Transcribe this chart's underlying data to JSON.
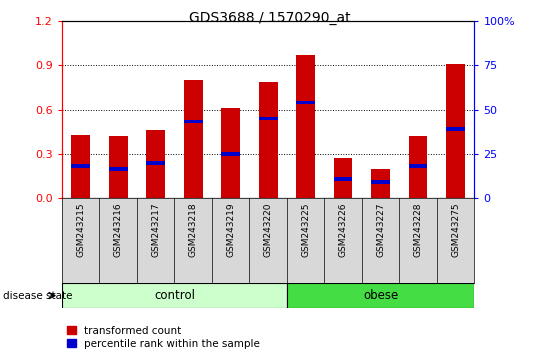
{
  "title": "GDS3688 / 1570290_at",
  "categories": [
    "GSM243215",
    "GSM243216",
    "GSM243217",
    "GSM243218",
    "GSM243219",
    "GSM243220",
    "GSM243225",
    "GSM243226",
    "GSM243227",
    "GSM243228",
    "GSM243275"
  ],
  "transformed_count": [
    0.43,
    0.42,
    0.46,
    0.8,
    0.61,
    0.79,
    0.97,
    0.27,
    0.2,
    0.42,
    0.91
  ],
  "percentile_rank_left": [
    0.22,
    0.2,
    0.24,
    0.52,
    0.3,
    0.54,
    0.65,
    0.13,
    0.11,
    0.22,
    0.47
  ],
  "bar_color": "#cc0000",
  "pct_color": "#0000cc",
  "ylim_left": [
    0,
    1.2
  ],
  "ylim_right": [
    0,
    100
  ],
  "yticks_left": [
    0,
    0.3,
    0.6,
    0.9,
    1.2
  ],
  "yticks_right": [
    0,
    25,
    50,
    75,
    100
  ],
  "control_count": 6,
  "total_count": 11,
  "control_color": "#ccffcc",
  "obese_color": "#44dd44",
  "bar_width": 0.5,
  "plot_bg_color": "#ffffff",
  "tick_area_bg": "#d8d8d8",
  "legend_items": [
    {
      "label": "transformed count",
      "color": "#cc0000"
    },
    {
      "label": "percentile rank within the sample",
      "color": "#0000cc"
    }
  ]
}
